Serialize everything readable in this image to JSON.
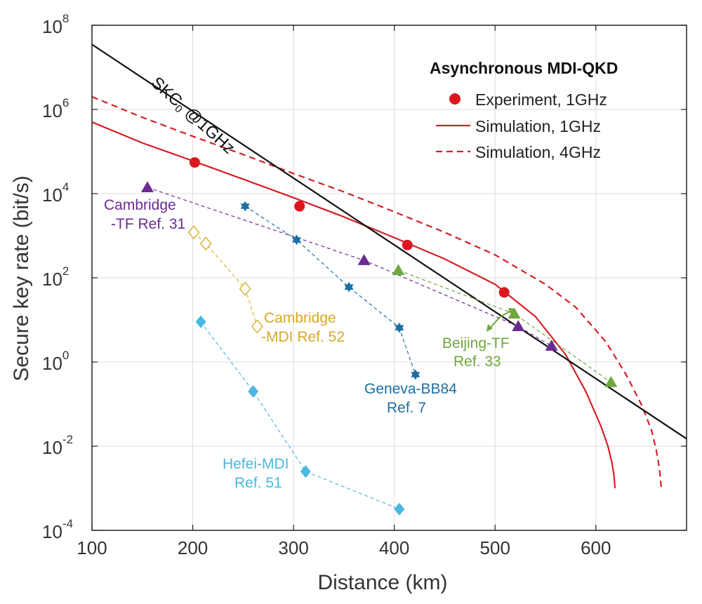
{
  "chart_data": {
    "type": "line",
    "xlabel": "Distance (km)",
    "ylabel": "Secure key rate (bit/s)",
    "xlim": [
      100,
      690
    ],
    "ylim": [
      0.0001,
      100000000
    ],
    "yscale": "log",
    "grid": true,
    "x_ticks": [
      "100",
      "200",
      "300",
      "400",
      "500",
      "600"
    ],
    "y_ticks": [
      {
        "base": "10",
        "exp": "-4",
        "value": 0.0001
      },
      {
        "base": "10",
        "exp": "-2",
        "value": 0.01
      },
      {
        "base": "10",
        "exp": "0",
        "value": 1
      },
      {
        "base": "10",
        "exp": "2",
        "value": 100
      },
      {
        "base": "10",
        "exp": "4",
        "value": 10000
      },
      {
        "base": "10",
        "exp": "6",
        "value": 1000000
      },
      {
        "base": "10",
        "exp": "8",
        "value": 100000000
      }
    ],
    "legend": {
      "title": "Asynchronous MDI-QKD",
      "placement": "top-right",
      "entries": [
        "Experiment, 1GHz",
        "Simulation, 1GHz",
        "Simulation, 4GHz"
      ]
    },
    "series": [
      {
        "name": "Experiment, 1GHz",
        "kind": "marker",
        "marker": "circle",
        "color": "#e0141e",
        "x": [
          202,
          306,
          413,
          509
        ],
        "y": [
          55000,
          5000,
          600,
          45
        ]
      },
      {
        "name": "Simulation, 1GHz",
        "kind": "line",
        "dash": false,
        "color": "#d42028",
        "x": [
          100,
          150,
          200,
          250,
          300,
          350,
          400,
          450,
          500,
          540,
          570,
          590,
          605,
          612,
          616,
          618,
          619
        ],
        "y": [
          500000,
          160000,
          60000,
          22000,
          8000,
          2800,
          900,
          280,
          70,
          12,
          1.5,
          0.2,
          0.03,
          0.01,
          0.004,
          0.002,
          0.001
        ]
      },
      {
        "name": "Simulation, 4GHz",
        "kind": "line",
        "dash": true,
        "color": "#d42028",
        "x": [
          100,
          150,
          200,
          250,
          300,
          350,
          400,
          450,
          500,
          550,
          580,
          610,
          630,
          645,
          655,
          660,
          663,
          665
        ],
        "y": [
          2000000,
          650000,
          230000,
          85000,
          30000,
          11000,
          3700,
          1200,
          350,
          70,
          20,
          3,
          0.5,
          0.1,
          0.025,
          0.008,
          0.003,
          0.001
        ]
      },
      {
        "name": "SKC0 @1GHz",
        "kind": "line",
        "dash": false,
        "color": "#111111",
        "x": [
          100,
          690
        ],
        "y": [
          35000000,
          0.015
        ]
      },
      {
        "name": "Cambridge-TF Ref. 31",
        "kind": "marker-line",
        "marker": "triangle",
        "color": "#6a2c91",
        "x": [
          155,
          370,
          523,
          556
        ],
        "y": [
          14000,
          260,
          7,
          2.4
        ]
      },
      {
        "name": "Geneva-BB84 Ref. 7",
        "kind": "marker-line",
        "marker": "star",
        "color": "#1c6fa3",
        "x": [
          252,
          303,
          355,
          405,
          421
        ],
        "y": [
          5000,
          800,
          60,
          6.5,
          0.5
        ]
      },
      {
        "name": "Beijing-TF Ref. 33",
        "kind": "marker-line",
        "marker": "triangle",
        "color": "#6fa83c",
        "x": [
          404,
          519,
          615
        ],
        "y": [
          150,
          14,
          0.33
        ]
      },
      {
        "name": "Cambridge-MDI Ref. 52",
        "kind": "marker-line",
        "marker": "diamond-open",
        "color": "#d8b234",
        "x": [
          201,
          213,
          252,
          264
        ],
        "y": [
          1200,
          650,
          55,
          7
        ]
      },
      {
        "name": "Hefei-MDI Ref. 51",
        "kind": "marker-line",
        "marker": "diamond",
        "color": "#4ab8e0",
        "x": [
          208,
          260,
          312,
          405
        ],
        "y": [
          9,
          0.2,
          0.0025,
          0.00032
        ]
      }
    ],
    "annotations": [
      {
        "lines": [
          "Cambridge",
          "-TF Ref. 31"
        ],
        "color": "#6a2c91"
      },
      {
        "lines": [
          "Cambridge",
          "-MDI Ref. 52"
        ],
        "color": "#d8a82a"
      },
      {
        "lines": [
          "Geneva-BB84",
          "Ref. 7"
        ],
        "color": "#1c6fa3"
      },
      {
        "lines": [
          "Beijing-TF",
          "Ref. 33"
        ],
        "color": "#6fa83c"
      },
      {
        "lines": [
          "Hefei-MDI",
          "Ref. 51"
        ],
        "color": "#4ab8e0"
      },
      {
        "lines": [
          "SKC",
          "0",
          " @1GHz"
        ],
        "color": "#111111"
      }
    ]
  }
}
